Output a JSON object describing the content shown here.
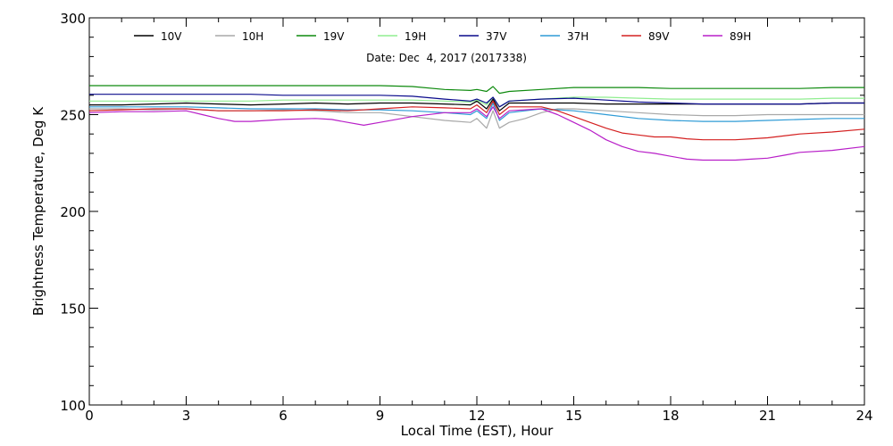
{
  "chart_data": {
    "type": "line",
    "xlabel": "Local Time (EST), Hour",
    "ylabel": "Brightness Temperature, Deg K",
    "annotation": "Date: Dec  4, 2017 (2017338)",
    "xlim": [
      0,
      24
    ],
    "ylim": [
      100,
      300
    ],
    "x_ticks": [
      0,
      3,
      6,
      9,
      12,
      15,
      18,
      21,
      24
    ],
    "y_ticks": [
      100,
      150,
      200,
      250,
      300
    ],
    "grid": false,
    "legend_position": "top",
    "series": [
      {
        "name": "10V",
        "color": "#000000",
        "x": [
          0,
          1,
          2,
          3,
          4,
          5,
          6,
          7,
          8,
          9,
          10,
          11,
          11.8,
          12,
          12.3,
          12.5,
          12.7,
          13,
          14,
          15,
          16,
          17,
          18,
          19,
          20,
          21,
          22,
          23,
          24
        ],
        "y": [
          255,
          255,
          255.5,
          256,
          255.5,
          255,
          255.5,
          256,
          255.5,
          256,
          256,
          255.5,
          255,
          257,
          253,
          258,
          252,
          256,
          256,
          256,
          255.5,
          255.5,
          255.5,
          255.5,
          255.5,
          255.5,
          255.5,
          256,
          256
        ]
      },
      {
        "name": "10H",
        "color": "#a8a8a8",
        "x": [
          0,
          1,
          2,
          3,
          4,
          5,
          6,
          7,
          8,
          9,
          10,
          11,
          11.8,
          12,
          12.3,
          12.5,
          12.7,
          13,
          13.5,
          14,
          14.5,
          15,
          16,
          17,
          18,
          19,
          20,
          21,
          22,
          23,
          24
        ],
        "y": [
          253,
          253,
          252.5,
          253,
          252,
          252,
          252.5,
          252,
          251,
          251,
          249,
          247,
          246,
          248,
          243,
          252,
          243,
          246,
          248,
          251,
          253,
          253,
          252,
          251,
          250,
          249.5,
          249.5,
          250,
          250,
          250,
          250
        ]
      },
      {
        "name": "19V",
        "color": "#0e8a0e",
        "x": [
          0,
          1,
          2,
          3,
          4,
          5,
          6,
          7,
          8,
          9,
          10,
          11,
          11.8,
          12,
          12.3,
          12.5,
          12.7,
          13,
          14,
          15,
          16,
          17,
          18,
          19,
          20,
          21,
          22,
          23,
          24
        ],
        "y": [
          265,
          265,
          265,
          265,
          265,
          265,
          265,
          265,
          265,
          265,
          264.5,
          263,
          262.5,
          263,
          262,
          264.5,
          261,
          262,
          263,
          264,
          264,
          264,
          263.5,
          263.5,
          263.5,
          263.5,
          263.5,
          264,
          264
        ]
      },
      {
        "name": "19H",
        "color": "#90ee90",
        "x": [
          0,
          1,
          2,
          3,
          4,
          5,
          6,
          7,
          8,
          9,
          10,
          11,
          11.8,
          12,
          12.3,
          12.5,
          12.7,
          13,
          14,
          15,
          16,
          17,
          18,
          19,
          20,
          21,
          22,
          23,
          24
        ],
        "y": [
          257,
          257,
          257,
          257,
          257,
          257,
          257.5,
          257.5,
          257.5,
          257.5,
          257.5,
          257,
          256.5,
          257.5,
          255,
          259,
          254,
          257,
          258,
          259,
          259,
          258.5,
          258,
          258,
          258,
          258,
          258,
          258.5,
          258.5
        ]
      },
      {
        "name": "37V",
        "color": "#0a0a8c",
        "x": [
          0,
          1,
          2,
          3,
          4,
          5,
          6,
          7,
          8,
          9,
          10,
          11,
          11.8,
          12,
          12.3,
          12.5,
          12.7,
          13,
          14,
          15,
          16,
          17,
          18,
          19,
          20,
          21,
          22,
          23,
          24
        ],
        "y": [
          260.5,
          260.5,
          260.5,
          260.5,
          260.5,
          260.5,
          260,
          260,
          260,
          260,
          259.5,
          258,
          257,
          258,
          256,
          259,
          254,
          257,
          258,
          258.5,
          257.5,
          256.5,
          256,
          255.5,
          255.5,
          255.5,
          255.5,
          256,
          256
        ]
      },
      {
        "name": "37H",
        "color": "#2e9bd6",
        "x": [
          0,
          1,
          2,
          3,
          4,
          5,
          6,
          7,
          8,
          9,
          10,
          11,
          11.8,
          12,
          12.3,
          12.5,
          12.7,
          13,
          14,
          15,
          16,
          17,
          18,
          19,
          20,
          21,
          22,
          23,
          24
        ],
        "y": [
          254,
          254,
          254,
          254,
          253.5,
          253,
          253,
          253,
          252.5,
          252.5,
          252,
          251,
          250,
          252,
          248,
          256,
          247,
          251,
          253,
          252,
          250,
          248,
          247,
          246.5,
          246.5,
          247,
          247.5,
          248,
          248
        ]
      },
      {
        "name": "89V",
        "color": "#d42020",
        "x": [
          0,
          1,
          2,
          3,
          4,
          5,
          6,
          7,
          8,
          9,
          10,
          11,
          11.8,
          12,
          12.3,
          12.5,
          12.7,
          13,
          14,
          14.5,
          15,
          15.5,
          16,
          16.5,
          17,
          17.5,
          18,
          18.5,
          19,
          19.5,
          20,
          20.5,
          21,
          22,
          23,
          24
        ],
        "y": [
          252,
          252.5,
          253,
          253,
          252,
          252,
          252,
          252.5,
          252,
          253,
          254,
          253.5,
          253,
          255,
          251,
          257,
          250,
          254,
          254,
          252,
          249,
          246,
          243,
          240.5,
          239.5,
          238.5,
          238.5,
          237.5,
          237,
          237,
          237,
          237.5,
          238,
          240,
          241,
          242.5
        ]
      },
      {
        "name": "89H",
        "color": "#b81fc8",
        "x": [
          0,
          1,
          2,
          3,
          3.5,
          4,
          4.5,
          5,
          6,
          7,
          7.5,
          8,
          8.5,
          9,
          10,
          11,
          11.8,
          12,
          12.3,
          12.5,
          12.7,
          13,
          14,
          14.5,
          15,
          15.5,
          16,
          16.5,
          17,
          17.5,
          18,
          18.5,
          19,
          19.5,
          20,
          20.5,
          21,
          21.5,
          22,
          23,
          24
        ],
        "y": [
          251,
          251.5,
          251.5,
          252,
          250,
          248,
          246.5,
          246.5,
          247.5,
          248,
          247.5,
          246,
          244.5,
          246,
          249,
          251,
          251,
          253,
          249,
          254,
          248,
          252,
          253,
          250,
          246,
          242,
          237,
          233.5,
          231,
          230,
          228.5,
          227,
          226.5,
          226.5,
          226.5,
          227,
          227.5,
          229,
          230.5,
          231.5,
          233.5
        ]
      }
    ]
  }
}
